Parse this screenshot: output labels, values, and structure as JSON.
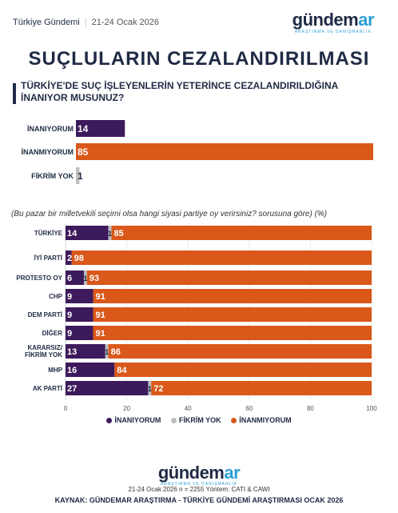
{
  "header": {
    "brand": "Türkiye Gündemi",
    "date": "21-24 Ocak 2026",
    "logo_main": "gündem",
    "logo_accent": "ar",
    "logo_sub": "ARAŞTIRMA VE DANIŞMANLIK"
  },
  "title": "SUÇLULARIN CEZALANDIRILMASI",
  "question": "TÜRKİYE'DE SUÇ İŞLEYENLERİN YETERİNCE CEZALANDIRILDIĞINA İNANIYOR MUSUNUZ?",
  "note": "(Bu pazar bir milletvekili seçimi olsa hangi siyasi partiye oy verirsiniz? sorusuna göre) (%)",
  "colors": {
    "inaniyorum": "#3d1a5b",
    "fikrim_yok": "#bdbdbd",
    "inanmiyorum": "#d9581a"
  },
  "chart_data": [
    {
      "type": "bar",
      "orientation": "horizontal",
      "categories": [
        "İNANIYORUM",
        "İNANMIYORUM",
        "FİKRİM YOK"
      ],
      "values": [
        14,
        85,
        1
      ]
    },
    {
      "type": "bar",
      "orientation": "horizontal",
      "stacked": true,
      "categories": [
        "TÜRKİYE",
        "İYİ PARTİ",
        "PROTESTO OY",
        "CHP",
        "DEM PARTİ",
        "DİĞER",
        "KARARSIZ/ FİKRİM YOK",
        "MHP",
        "AK PARTİ"
      ],
      "series": [
        {
          "name": "İNANIYORUM",
          "values": [
            14,
            2,
            6,
            9,
            9,
            9,
            13,
            16,
            27
          ]
        },
        {
          "name": "FİKRİM YOK",
          "values": [
            1,
            0,
            1,
            0,
            0,
            0,
            1,
            0,
            1
          ]
        },
        {
          "name": "İNANMIYORUM",
          "values": [
            85,
            98,
            93,
            91,
            91,
            91,
            86,
            84,
            72
          ]
        }
      ],
      "xlim": [
        0,
        100
      ],
      "xticks": [
        0,
        20,
        40,
        60,
        80,
        100
      ],
      "legend": "bottom-center"
    }
  ],
  "footer": {
    "meta": "21-24 Ocak 2026 n = 2255 Yöntem: CATI & CAWI",
    "source": "KAYNAK: GÜNDEMAR ARAŞTIRMA - TÜRKİYE GÜNDEMİ ARAŞTIRMASI OCAK 2026"
  }
}
